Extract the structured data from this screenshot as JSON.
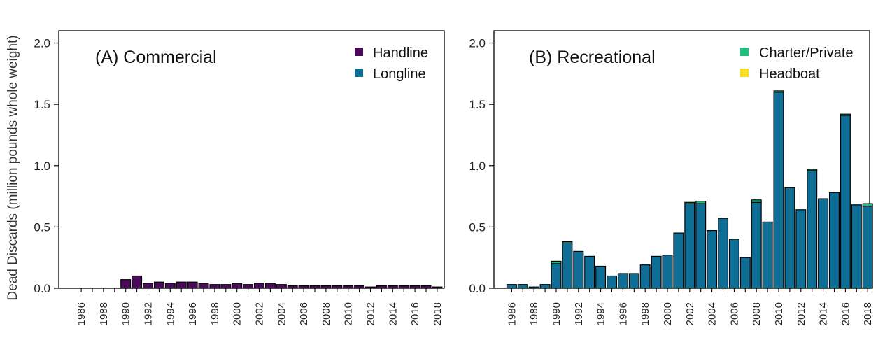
{
  "shared": {
    "ylabel": "Dead Discards (million pounds whole weight)",
    "ylim": [
      0,
      2.1
    ],
    "yticks": [
      "0.0",
      "0.5",
      "1.0",
      "1.5",
      "2.0"
    ],
    "ytick_values": [
      0,
      0.5,
      1.0,
      1.5,
      2.0
    ],
    "xtick_labels": [
      "1986",
      "1988",
      "1990",
      "1992",
      "1994",
      "1996",
      "1998",
      "2000",
      "2002",
      "2004",
      "2006",
      "2008",
      "2010",
      "2012",
      "2014",
      "2016",
      "2018"
    ]
  },
  "colors": {
    "handline": "#4a0a5a",
    "longline": "#0e6e96",
    "charter_private": "#1fbf7f",
    "headboat": "#f5dd2a",
    "axis": "#000000"
  },
  "chart_data": [
    {
      "type": "bar",
      "stacked": true,
      "panel_title": "(A) Commercial",
      "ylabel": "Dead Discards (million pounds whole weight)",
      "ylim": [
        0,
        2.1
      ],
      "categories": [
        "1986",
        "1987",
        "1988",
        "1989",
        "1990",
        "1991",
        "1992",
        "1993",
        "1994",
        "1995",
        "1996",
        "1997",
        "1998",
        "1999",
        "2000",
        "2001",
        "2002",
        "2003",
        "2004",
        "2005",
        "2006",
        "2007",
        "2008",
        "2009",
        "2010",
        "2011",
        "2012",
        "2013",
        "2014",
        "2015",
        "2016",
        "2017",
        "2018"
      ],
      "series": [
        {
          "name": "Handline",
          "color": "#4a0a5a",
          "values": [
            0,
            0,
            0,
            0,
            0.07,
            0.1,
            0.04,
            0.05,
            0.04,
            0.05,
            0.05,
            0.04,
            0.03,
            0.03,
            0.04,
            0.03,
            0.04,
            0.04,
            0.03,
            0.02,
            0.02,
            0.02,
            0.02,
            0.02,
            0.02,
            0.02,
            0.01,
            0.02,
            0.02,
            0.02,
            0.02,
            0.02,
            0.01
          ]
        },
        {
          "name": "Longline",
          "color": "#0e6e96",
          "values": [
            0,
            0,
            0,
            0,
            0,
            0,
            0,
            0,
            0,
            0,
            0,
            0,
            0,
            0,
            0,
            0,
            0,
            0,
            0,
            0,
            0,
            0,
            0,
            0,
            0,
            0,
            0,
            0,
            0,
            0,
            0,
            0,
            0
          ]
        }
      ],
      "legend_position": "top-right"
    },
    {
      "type": "bar",
      "stacked": true,
      "panel_title": "(B) Recreational",
      "ylim": [
        0,
        2.1
      ],
      "categories": [
        "1986",
        "1987",
        "1988",
        "1989",
        "1990",
        "1991",
        "1992",
        "1993",
        "1994",
        "1995",
        "1996",
        "1997",
        "1998",
        "1999",
        "2000",
        "2001",
        "2002",
        "2003",
        "2004",
        "2005",
        "2006",
        "2007",
        "2008",
        "2009",
        "2010",
        "2011",
        "2012",
        "2013",
        "2014",
        "2015",
        "2016",
        "2017",
        "2018"
      ],
      "series": [
        {
          "name": "Headboat",
          "color": "#0e6e96",
          "values": [
            0.03,
            0.03,
            0.01,
            0.03,
            0.2,
            0.37,
            0.3,
            0.26,
            0.18,
            0.1,
            0.12,
            0.12,
            0.19,
            0.26,
            0.27,
            0.45,
            0.69,
            0.69,
            0.47,
            0.57,
            0.4,
            0.25,
            0.7,
            0.54,
            1.6,
            0.82,
            0.64,
            0.96,
            0.73,
            0.78,
            1.41,
            0.68,
            0.67
          ]
        },
        {
          "name": "Charter/Private",
          "color": "#1fbf7f",
          "values": [
            0,
            0,
            0,
            0,
            0.02,
            0.01,
            0,
            0,
            0,
            0,
            0,
            0,
            0,
            0,
            0,
            0,
            0.01,
            0.02,
            0,
            0,
            0,
            0,
            0.02,
            0,
            0.01,
            0,
            0,
            0.01,
            0,
            0,
            0.01,
            0,
            0.02
          ]
        }
      ],
      "legend": [
        "Charter/Private",
        "Headboat"
      ],
      "legend_position": "top-right"
    }
  ]
}
